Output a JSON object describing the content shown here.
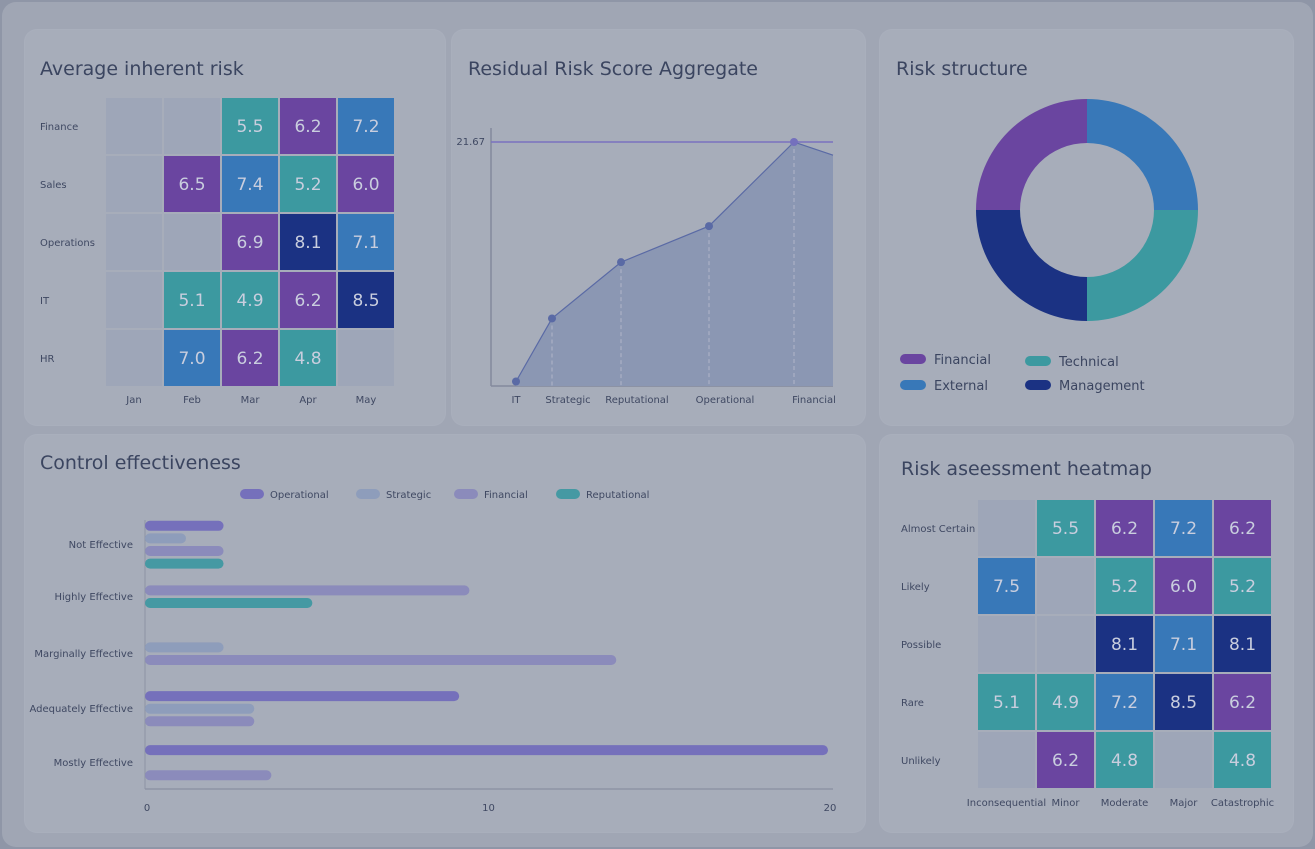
{
  "colors": {
    "purple": "#6a45a0",
    "blue": "#3878b8",
    "teal": "#3c99a0",
    "navy": "#1b3283",
    "empty": "#9ea6b8"
  },
  "cards": {
    "avg_risk_title": "Average inherent risk",
    "residual_title": "Residual Risk Score Aggregate",
    "structure_title": "Risk structure",
    "control_title": "Control effectiveness",
    "heatmap_title": "Risk aseessment heatmap"
  },
  "chart_data": [
    {
      "type": "heatmap",
      "title": "Average inherent risk",
      "rows": [
        "Finance",
        "Sales",
        "Operations",
        "IT",
        "HR"
      ],
      "columns": [
        "Jan",
        "Feb",
        "Mar",
        "Apr",
        "May"
      ],
      "values": [
        [
          null,
          null,
          5.5,
          6.2,
          7.2
        ],
        [
          null,
          6.5,
          7.4,
          5.2,
          6.0
        ],
        [
          null,
          null,
          6.9,
          8.1,
          7.1
        ],
        [
          null,
          5.1,
          4.9,
          6.2,
          8.5
        ],
        [
          null,
          7.0,
          6.2,
          4.8,
          null
        ]
      ],
      "color_keys": [
        [
          null,
          null,
          "teal",
          "purple",
          "blue"
        ],
        [
          null,
          "purple",
          "blue",
          "teal",
          "purple"
        ],
        [
          null,
          null,
          "purple",
          "navy",
          "blue"
        ],
        [
          null,
          "teal",
          "teal",
          "purple",
          "navy"
        ],
        [
          null,
          "blue",
          "purple",
          "teal",
          null
        ]
      ]
    },
    {
      "type": "area",
      "title": "Residual Risk Score Aggregate",
      "categories": [
        "IT",
        "Strategic",
        "Reputational",
        "Operational",
        "Financial"
      ],
      "values": [
        0.4,
        6.0,
        11.0,
        14.2,
        21.67
      ],
      "trailing_value": 20.5,
      "reference_line": {
        "value": 21.67,
        "label": "21.67"
      },
      "ylim": [
        0,
        21.67
      ]
    },
    {
      "type": "pie",
      "title": "Risk structure",
      "donut": true,
      "slices": [
        {
          "label": "External",
          "value": 25,
          "color": "#3878b8"
        },
        {
          "label": "Technical",
          "value": 25,
          "color": "#3c99a0"
        },
        {
          "label": "Management",
          "value": 25,
          "color": "#1b3283"
        },
        {
          "label": "Financial",
          "value": 25,
          "color": "#6a45a0"
        }
      ],
      "legend": [
        {
          "label": "Financial",
          "color": "#6a45a0"
        },
        {
          "label": "Technical",
          "color": "#3c99a0"
        },
        {
          "label": "External",
          "color": "#3878b8"
        },
        {
          "label": "Management",
          "color": "#1b3283"
        }
      ],
      "legend_position": "bottom"
    },
    {
      "type": "bar",
      "orientation": "horizontal",
      "title": "Control effectiveness",
      "categories": [
        "Not Effective",
        "Highly Effective",
        "Marginally Effective",
        "Adequately Effective",
        "Mostly Effective"
      ],
      "series": [
        {
          "name": "Operational",
          "color": "#7570bb",
          "values": [
            2.3,
            null,
            null,
            9.2,
            20
          ]
        },
        {
          "name": "Strategic",
          "color": "#8e9dbb",
          "values": [
            1.2,
            null,
            2.3,
            3.2,
            null
          ]
        },
        {
          "name": "Financial",
          "color": "#8b8bbb",
          "values": [
            2.3,
            9.5,
            13.8,
            3.2,
            3.7
          ]
        },
        {
          "name": "Reputational",
          "color": "#4599a3",
          "values": [
            2.3,
            4.9,
            null,
            null,
            null
          ]
        }
      ],
      "xticks": [
        "0",
        "10",
        "20"
      ],
      "xlim": [
        0,
        20
      ],
      "legend_position": "top"
    },
    {
      "type": "heatmap",
      "title": "Risk aseessment heatmap",
      "rows": [
        "Almost Certain",
        "Likely",
        "Possible",
        "Rare",
        "Unlikely"
      ],
      "columns": [
        "Inconsequential",
        "Minor",
        "Moderate",
        "Major",
        "Catastrophic"
      ],
      "values": [
        [
          null,
          5.5,
          6.2,
          7.2,
          6.2
        ],
        [
          7.5,
          null,
          5.2,
          6.0,
          5.2
        ],
        [
          null,
          null,
          8.1,
          7.1,
          8.1
        ],
        [
          5.1,
          4.9,
          7.2,
          8.5,
          6.2
        ],
        [
          null,
          6.2,
          4.8,
          null,
          4.8
        ]
      ],
      "color_keys": [
        [
          null,
          "teal",
          "purple",
          "blue",
          "purple"
        ],
        [
          "blue",
          null,
          "teal",
          "purple",
          "teal"
        ],
        [
          null,
          null,
          "navy",
          "blue",
          "navy"
        ],
        [
          "teal",
          "teal",
          "blue",
          "navy",
          "purple"
        ],
        [
          null,
          "purple",
          "teal",
          null,
          "teal"
        ]
      ]
    }
  ]
}
